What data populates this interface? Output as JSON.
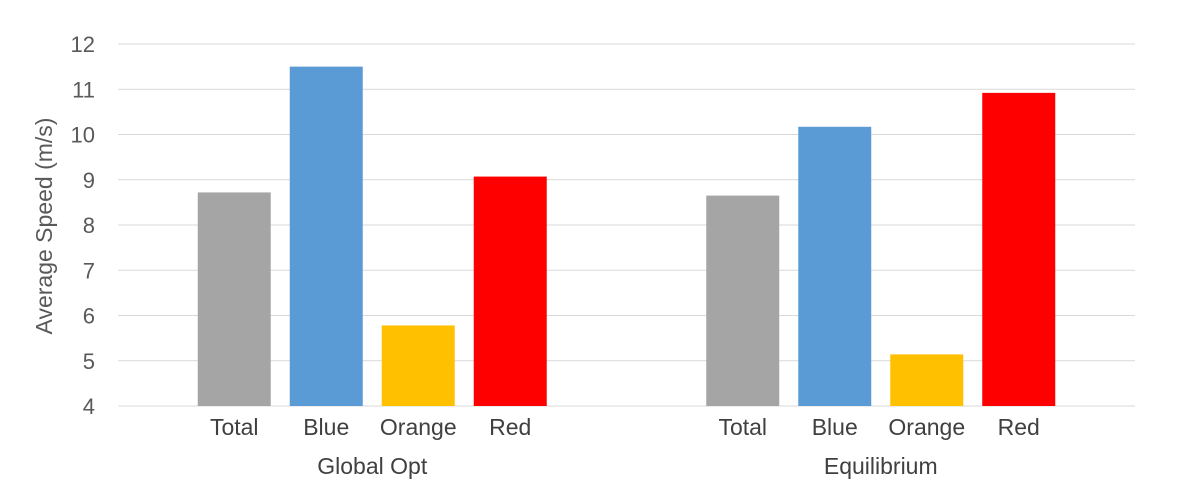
{
  "chart_data": {
    "type": "bar",
    "title": "",
    "xlabel": "",
    "ylabel": "Average Speed (m/s)",
    "ylim": [
      4,
      12
    ],
    "yticks": [
      4,
      5,
      6,
      7,
      8,
      9,
      10,
      11,
      12
    ],
    "grid": true,
    "legend": "none",
    "categories": [
      "Total",
      "Blue",
      "Orange",
      "Red"
    ],
    "colors": {
      "Total": "#a5a5a5",
      "Blue": "#5b9bd5",
      "Orange": "#ffc000",
      "Red": "#ff0000"
    },
    "groups": [
      {
        "name": "Global Opt",
        "values": [
          8.72,
          11.5,
          5.78,
          9.07
        ]
      },
      {
        "name": "Equilibrium",
        "values": [
          8.65,
          10.17,
          5.14,
          10.92
        ]
      }
    ]
  }
}
